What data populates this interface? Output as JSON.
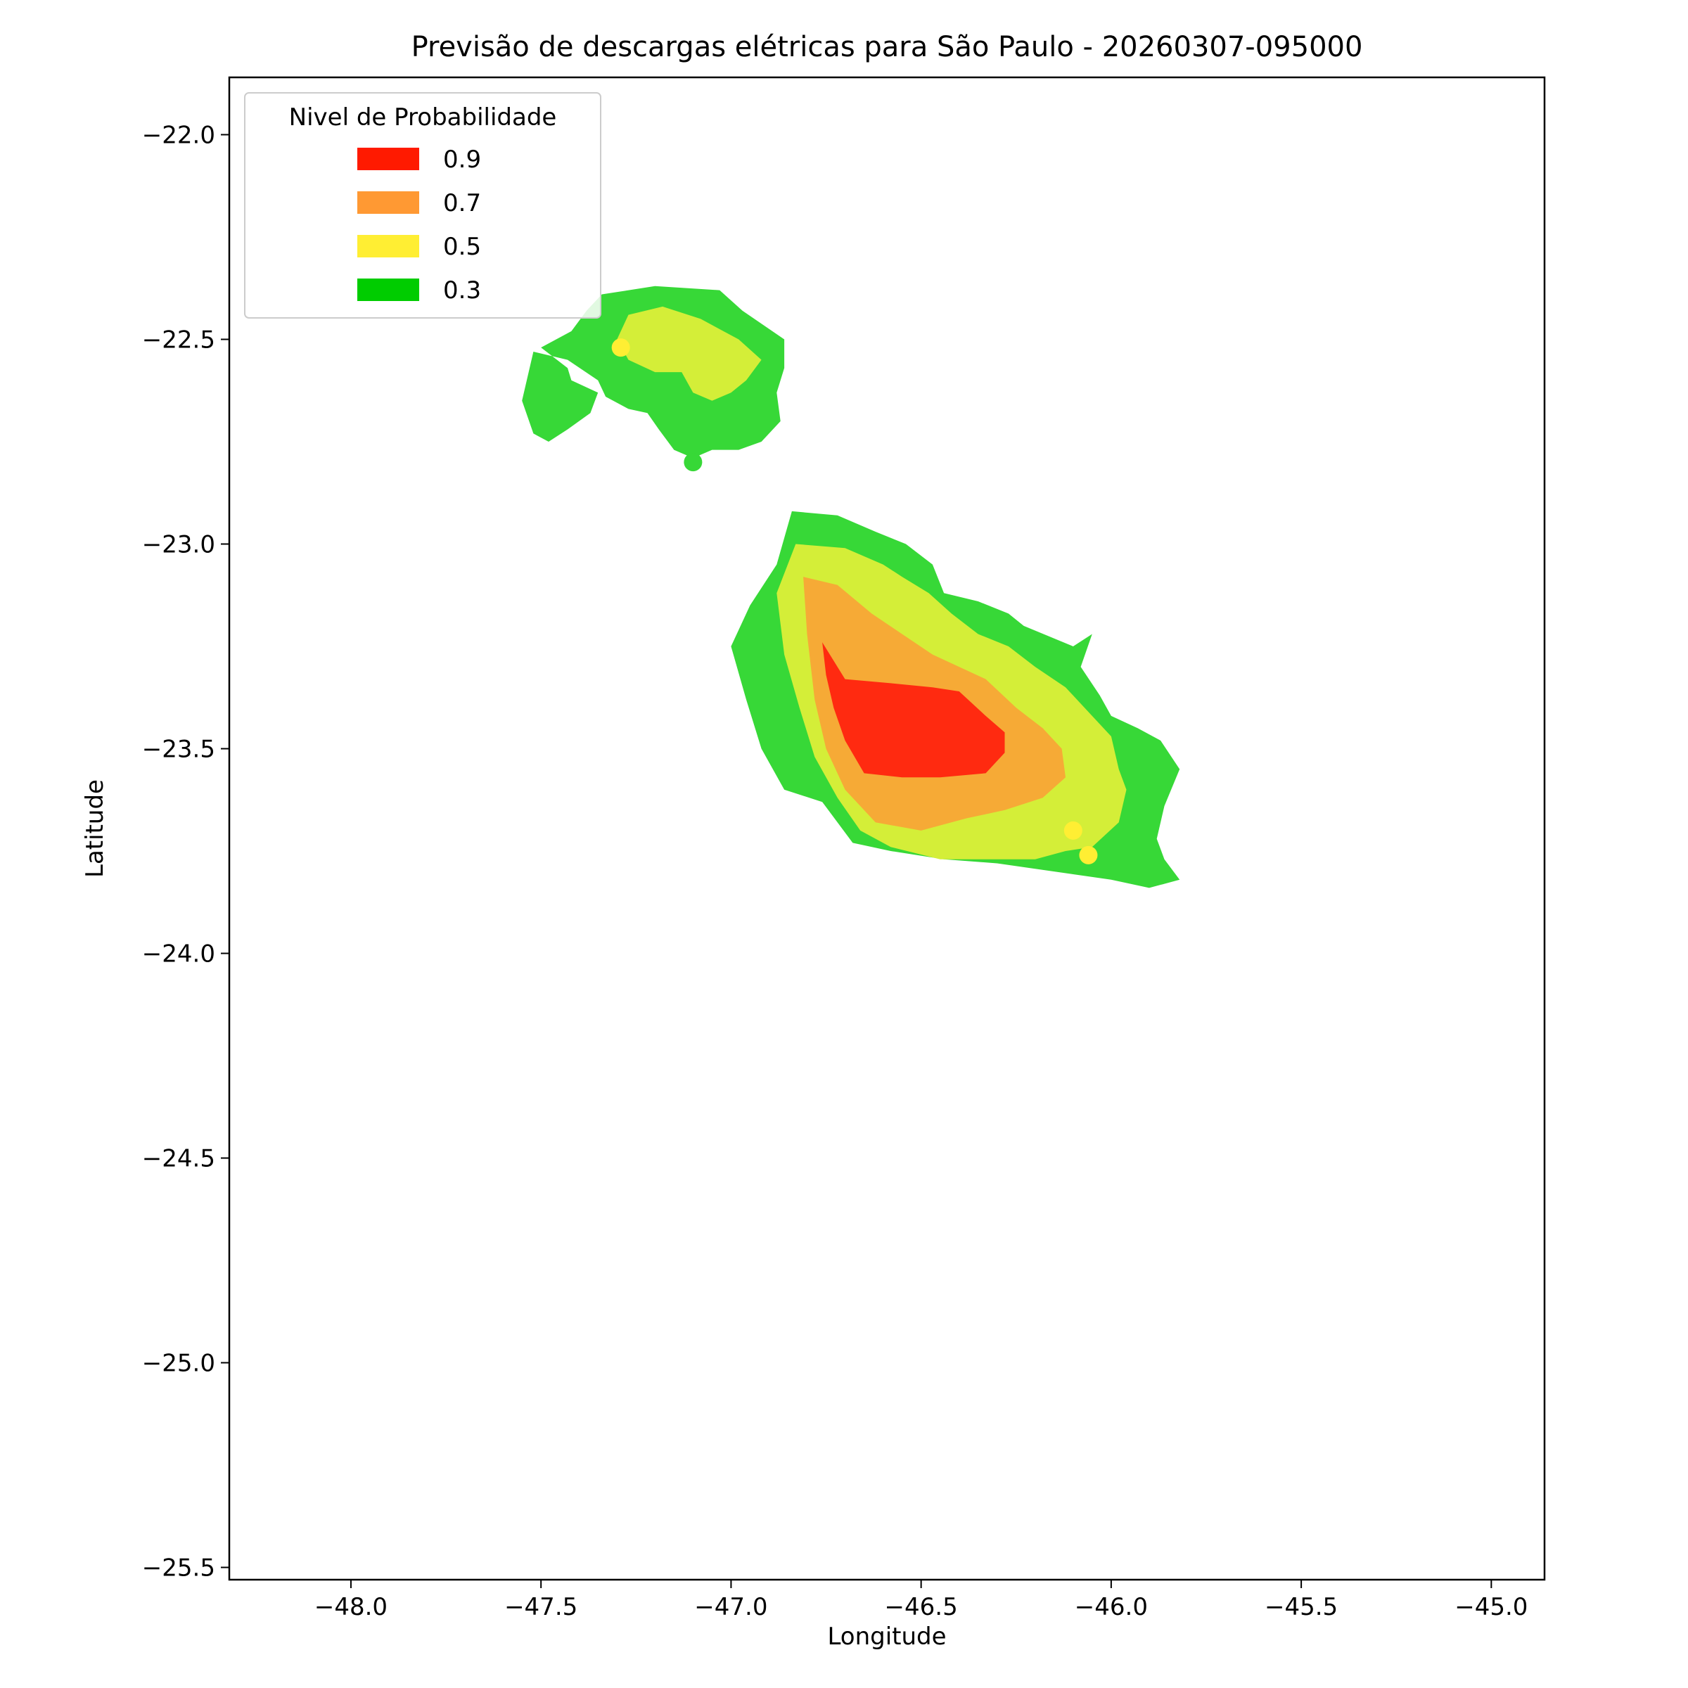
{
  "chart_data": {
    "type": "contour",
    "title": "Previsão de descargas elétricas para São Paulo - 20260307-095000",
    "xlabel": "Longitude",
    "ylabel": "Latitude",
    "xlim": [
      -48.32,
      -44.86
    ],
    "ylim": [
      -25.53,
      -21.86
    ],
    "xticks": [
      -48.0,
      -47.5,
      -47.0,
      -46.5,
      -46.0,
      -45.5,
      -45.0
    ],
    "xtick_labels": [
      "−48.0",
      "−47.5",
      "−47.0",
      "−46.5",
      "−46.0",
      "−45.5",
      "−45.0"
    ],
    "yticks": [
      -22.0,
      -22.5,
      -23.0,
      -23.5,
      -24.0,
      -24.5,
      -25.0,
      -25.5
    ],
    "ytick_labels": [
      "−22.0",
      "−22.5",
      "−23.0",
      "−23.5",
      "−24.0",
      "−24.5",
      "−25.0",
      "−25.5"
    ],
    "grid": false,
    "legend": {
      "title": "Nivel de Probabilidade",
      "placement": "upper-left",
      "entries": [
        {
          "label": "0.9",
          "color": "#ff1a00"
        },
        {
          "label": "0.7",
          "color": "#ff9933"
        },
        {
          "label": "0.5",
          "color": "#ffee33"
        },
        {
          "label": "0.3",
          "color": "#00cc00"
        }
      ]
    },
    "regions": [
      {
        "level": "0.3",
        "color": "#37d837",
        "polygon": [
          [
            -47.34,
            -22.39
          ],
          [
            -47.2,
            -22.37
          ],
          [
            -47.03,
            -22.38
          ],
          [
            -46.97,
            -22.43
          ],
          [
            -46.86,
            -22.5
          ],
          [
            -46.86,
            -22.57
          ],
          [
            -46.88,
            -22.63
          ],
          [
            -46.87,
            -22.7
          ],
          [
            -46.92,
            -22.75
          ],
          [
            -46.98,
            -22.77
          ],
          [
            -47.05,
            -22.77
          ],
          [
            -47.1,
            -22.79
          ],
          [
            -47.15,
            -22.77
          ],
          [
            -47.19,
            -22.72
          ],
          [
            -47.22,
            -22.68
          ],
          [
            -47.27,
            -22.67
          ],
          [
            -47.33,
            -22.64
          ],
          [
            -47.35,
            -22.6
          ],
          [
            -47.43,
            -22.55
          ],
          [
            -47.52,
            -22.53
          ],
          [
            -47.53,
            -22.57
          ],
          [
            -47.55,
            -22.65
          ],
          [
            -47.52,
            -22.73
          ],
          [
            -47.48,
            -22.75
          ],
          [
            -47.43,
            -22.72
          ],
          [
            -47.37,
            -22.68
          ],
          [
            -47.35,
            -22.63
          ],
          [
            -47.42,
            -22.6
          ],
          [
            -47.43,
            -22.57
          ],
          [
            -47.5,
            -22.52
          ],
          [
            -47.42,
            -22.48
          ],
          [
            -47.38,
            -22.43
          ]
        ]
      },
      {
        "level": "0.5",
        "color": "#d4ee38",
        "polygon": [
          [
            -47.27,
            -22.44
          ],
          [
            -47.18,
            -22.42
          ],
          [
            -47.08,
            -22.45
          ],
          [
            -46.98,
            -22.5
          ],
          [
            -46.92,
            -22.55
          ],
          [
            -46.96,
            -22.6
          ],
          [
            -47.0,
            -22.63
          ],
          [
            -47.05,
            -22.65
          ],
          [
            -47.1,
            -22.63
          ],
          [
            -47.13,
            -22.58
          ],
          [
            -47.2,
            -22.58
          ],
          [
            -47.27,
            -22.55
          ],
          [
            -47.3,
            -22.5
          ]
        ]
      },
      {
        "level": "0.3",
        "color": "#37d837",
        "polygon": [
          [
            -46.84,
            -22.92
          ],
          [
            -46.72,
            -22.93
          ],
          [
            -46.62,
            -22.97
          ],
          [
            -46.54,
            -23.0
          ],
          [
            -46.47,
            -23.05
          ],
          [
            -46.44,
            -23.12
          ],
          [
            -46.35,
            -23.14
          ],
          [
            -46.27,
            -23.17
          ],
          [
            -46.23,
            -23.2
          ],
          [
            -46.1,
            -23.25
          ],
          [
            -46.05,
            -23.22
          ],
          [
            -46.08,
            -23.3
          ],
          [
            -46.03,
            -23.37
          ],
          [
            -46.0,
            -23.42
          ],
          [
            -45.93,
            -23.45
          ],
          [
            -45.87,
            -23.48
          ],
          [
            -45.82,
            -23.55
          ],
          [
            -45.86,
            -23.64
          ],
          [
            -45.88,
            -23.72
          ],
          [
            -45.86,
            -23.77
          ],
          [
            -45.82,
            -23.82
          ],
          [
            -45.9,
            -23.84
          ],
          [
            -46.0,
            -23.82
          ],
          [
            -46.15,
            -23.8
          ],
          [
            -46.3,
            -23.78
          ],
          [
            -46.44,
            -23.77
          ],
          [
            -46.58,
            -23.75
          ],
          [
            -46.68,
            -23.73
          ],
          [
            -46.76,
            -23.63
          ],
          [
            -46.86,
            -23.6
          ],
          [
            -46.92,
            -23.5
          ],
          [
            -46.96,
            -23.38
          ],
          [
            -47.0,
            -23.25
          ],
          [
            -46.95,
            -23.15
          ],
          [
            -46.88,
            -23.05
          ]
        ]
      },
      {
        "level": "0.5",
        "color": "#d4ee38",
        "polygon": [
          [
            -46.83,
            -23.0
          ],
          [
            -46.7,
            -23.01
          ],
          [
            -46.6,
            -23.05
          ],
          [
            -46.55,
            -23.08
          ],
          [
            -46.48,
            -23.12
          ],
          [
            -46.42,
            -23.17
          ],
          [
            -46.35,
            -23.22
          ],
          [
            -46.27,
            -23.25
          ],
          [
            -46.2,
            -23.3
          ],
          [
            -46.12,
            -23.35
          ],
          [
            -46.05,
            -23.42
          ],
          [
            -46.0,
            -23.47
          ],
          [
            -45.98,
            -23.55
          ],
          [
            -45.96,
            -23.6
          ],
          [
            -45.98,
            -23.68
          ],
          [
            -46.05,
            -23.74
          ],
          [
            -46.12,
            -23.75
          ],
          [
            -46.2,
            -23.77
          ],
          [
            -46.3,
            -23.77
          ],
          [
            -46.45,
            -23.77
          ],
          [
            -46.58,
            -23.74
          ],
          [
            -46.66,
            -23.7
          ],
          [
            -46.72,
            -23.62
          ],
          [
            -46.78,
            -23.52
          ],
          [
            -46.82,
            -23.4
          ],
          [
            -46.86,
            -23.27
          ],
          [
            -46.88,
            -23.12
          ]
        ]
      },
      {
        "level": "0.7",
        "color": "#f6aa36",
        "polygon": [
          [
            -46.81,
            -23.08
          ],
          [
            -46.72,
            -23.1
          ],
          [
            -46.63,
            -23.17
          ],
          [
            -46.55,
            -23.22
          ],
          [
            -46.47,
            -23.27
          ],
          [
            -46.4,
            -23.3
          ],
          [
            -46.33,
            -23.33
          ],
          [
            -46.25,
            -23.4
          ],
          [
            -46.18,
            -23.45
          ],
          [
            -46.13,
            -23.5
          ],
          [
            -46.12,
            -23.57
          ],
          [
            -46.18,
            -23.62
          ],
          [
            -46.28,
            -23.65
          ],
          [
            -46.38,
            -23.67
          ],
          [
            -46.5,
            -23.7
          ],
          [
            -46.62,
            -23.68
          ],
          [
            -46.7,
            -23.6
          ],
          [
            -46.75,
            -23.5
          ],
          [
            -46.78,
            -23.38
          ],
          [
            -46.8,
            -23.22
          ]
        ]
      },
      {
        "level": "0.9",
        "color": "#ff2a10",
        "polygon": [
          [
            -46.76,
            -23.24
          ],
          [
            -46.7,
            -23.33
          ],
          [
            -46.58,
            -23.34
          ],
          [
            -46.47,
            -23.35
          ],
          [
            -46.4,
            -23.36
          ],
          [
            -46.33,
            -23.42
          ],
          [
            -46.28,
            -23.46
          ],
          [
            -46.28,
            -23.51
          ],
          [
            -46.33,
            -23.56
          ],
          [
            -46.45,
            -23.57
          ],
          [
            -46.55,
            -23.57
          ],
          [
            -46.65,
            -23.56
          ],
          [
            -46.7,
            -23.48
          ],
          [
            -46.73,
            -23.4
          ],
          [
            -46.75,
            -23.32
          ]
        ]
      }
    ],
    "points": [
      {
        "x": -47.29,
        "y": -22.52,
        "color": "#ffee33"
      },
      {
        "x": -47.1,
        "y": -22.8,
        "color": "#37d837"
      },
      {
        "x": -46.1,
        "y": -23.7,
        "color": "#ffee33"
      },
      {
        "x": -46.06,
        "y": -23.76,
        "color": "#ffee33"
      }
    ]
  }
}
